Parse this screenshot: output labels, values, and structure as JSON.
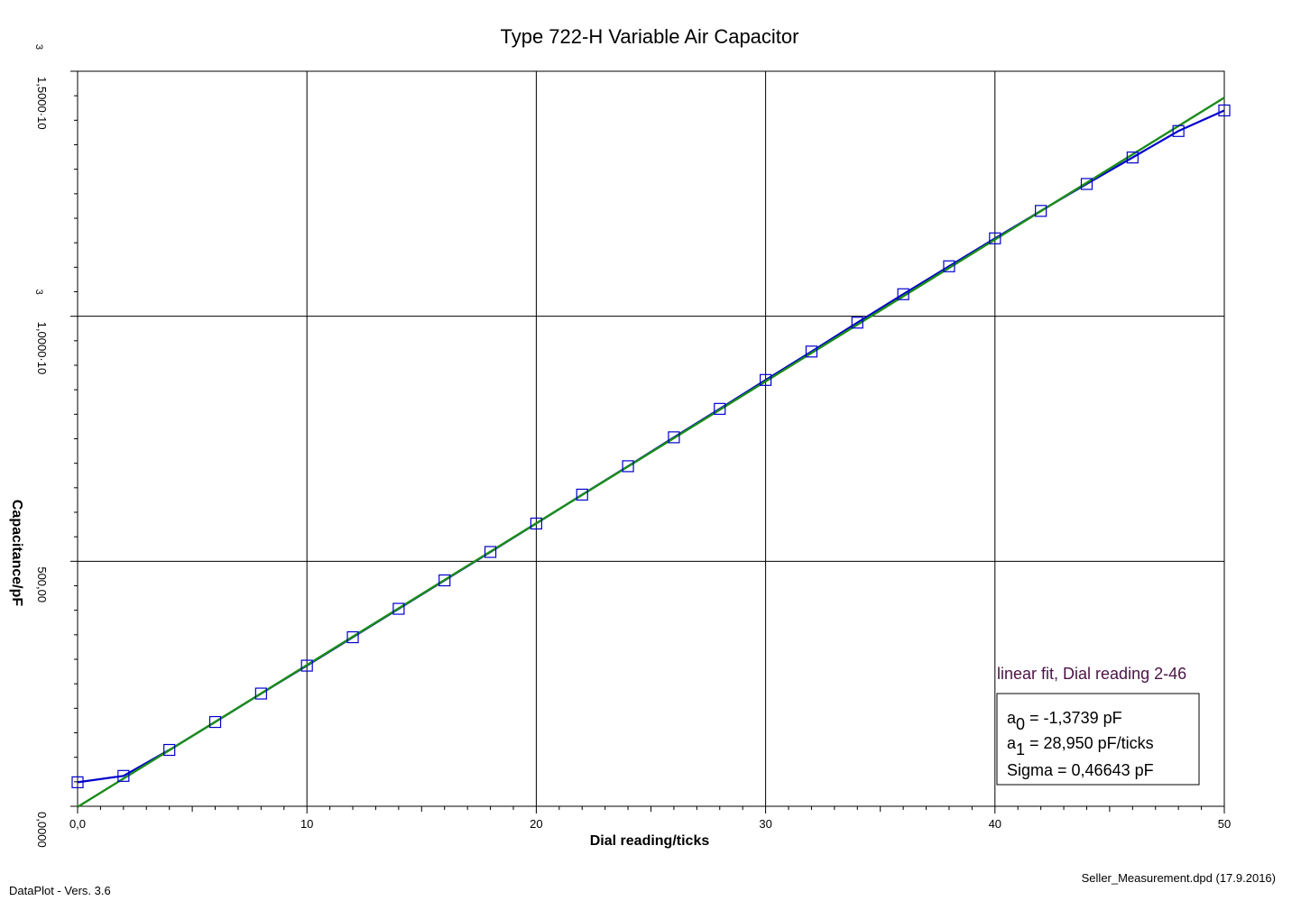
{
  "chart_data": {
    "type": "scatter",
    "title": "Type 722-H Variable Air Capacitor",
    "xlabel": "Dial reading/ticks",
    "ylabel": "Capacitance/pF",
    "xlim": [
      0,
      50
    ],
    "ylim": [
      0,
      1500
    ],
    "grid": true,
    "x_ticks": [
      0,
      10,
      20,
      30,
      40,
      50
    ],
    "x_tick_labels": [
      "0,0",
      "10",
      "20",
      "30",
      "40",
      "50"
    ],
    "y_ticks": [
      0,
      500,
      1000,
      1500
    ],
    "y_tick_labels": [
      {
        "mantissa": "0,0000",
        "exponent": ""
      },
      {
        "mantissa": "500,00",
        "exponent": ""
      },
      {
        "mantissa": "1,0000·10",
        "exponent": "3"
      },
      {
        "mantissa": "1,5000·10",
        "exponent": "3"
      }
    ],
    "series": [
      {
        "name": "",
        "color": "#0000cc",
        "marker": "square",
        "x": [
          0,
          2,
          4,
          6,
          8,
          10,
          12,
          14,
          16,
          18,
          20,
          22,
          24,
          26,
          28,
          30,
          32,
          34,
          36,
          38,
          40,
          42,
          44,
          46,
          48,
          50
        ],
        "y": [
          49,
          62,
          115,
          172,
          230,
          287,
          345,
          403,
          461,
          519,
          577,
          636,
          694,
          753,
          811,
          870,
          928,
          987,
          1045,
          1102,
          1159,
          1215,
          1270,
          1324,
          1378,
          1420
        ]
      }
    ],
    "fit": {
      "name": "linear fit, Dial  reading 2-46",
      "color": "#1a8c1a",
      "a0": -1.3739,
      "a1": 28.95,
      "x_range": [
        0,
        50
      ],
      "label_a0_sym": "a",
      "label_a0_sub": "0",
      "label_a0_val": " = -1,3739 pF",
      "label_a1_sym": "a",
      "label_a1_sub": "1",
      "label_a1_val": " = 28,950 pF/ticks",
      "label_sigma": "Sigma = 0,46643 pF"
    },
    "footer_left": "DataPlot - Vers. 3.6",
    "footer_right": "Seller_Measurement.dpd (17.9.2016)"
  }
}
